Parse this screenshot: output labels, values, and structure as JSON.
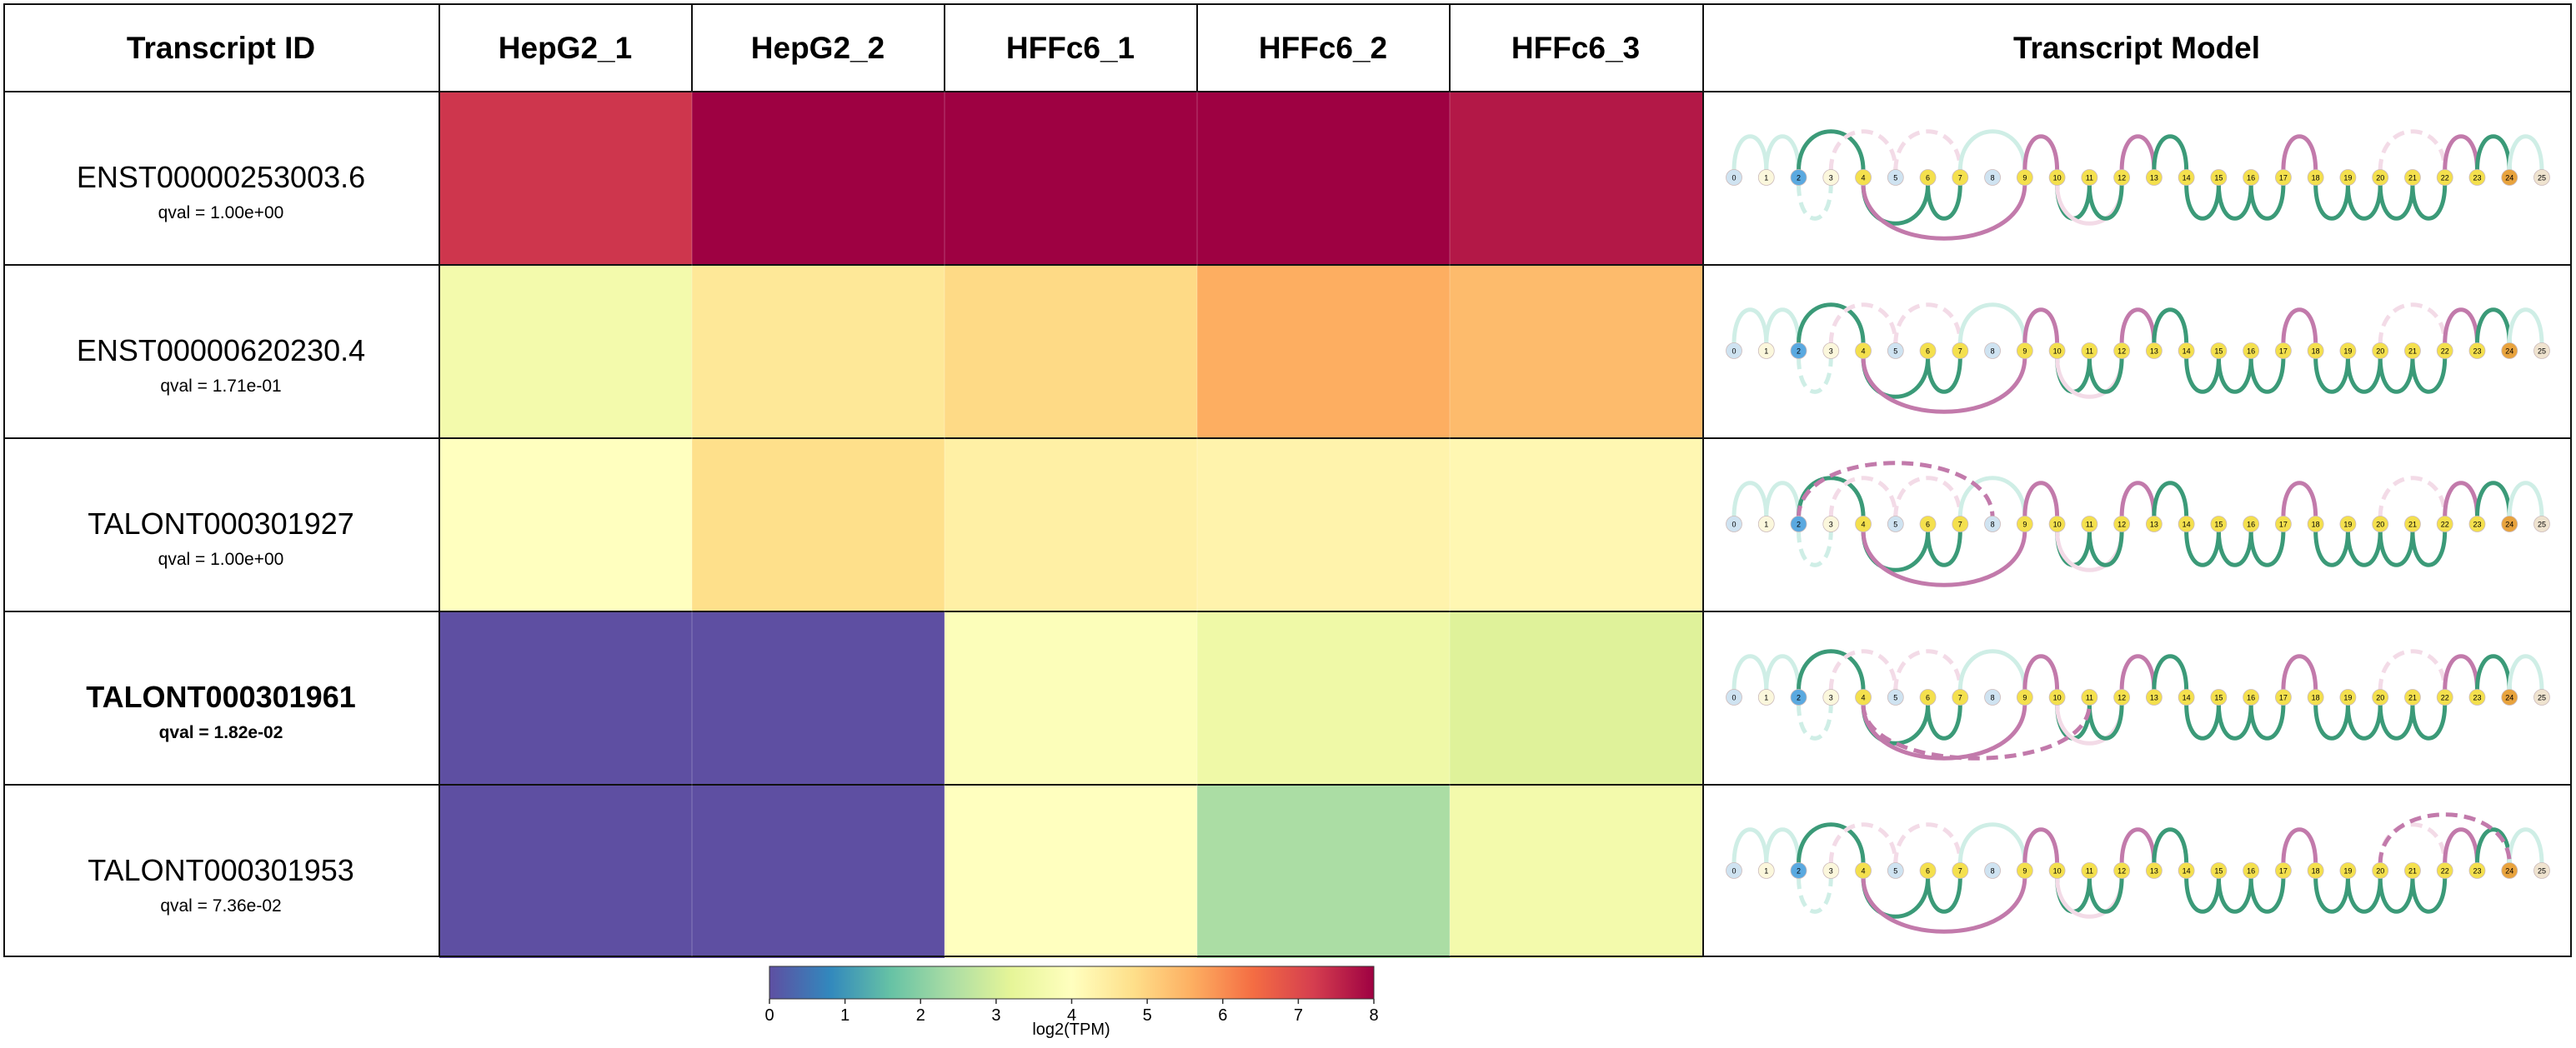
{
  "headers": {
    "transcript_id": "Transcript ID",
    "samples": [
      "HepG2_1",
      "HepG2_2",
      "HFFc6_1",
      "HFFc6_2",
      "HFFc6_3"
    ],
    "model": "Transcript Model"
  },
  "chart_data": {
    "type": "heatmap",
    "rows": [
      {
        "id": "ENST00000253003.6",
        "qval": "qval = 1.00e+00",
        "bold": false
      },
      {
        "id": "ENST00000620230.4",
        "qval": "qval = 1.71e-01",
        "bold": false
      },
      {
        "id": "TALONT000301927",
        "qval": "qval = 1.00e+00",
        "bold": false
      },
      {
        "id": "TALONT000301961",
        "qval": "qval = 1.82e-02",
        "bold": true
      },
      {
        "id": "TALONT000301953",
        "qval": "qval = 7.36e-02",
        "bold": false
      }
    ],
    "columns": [
      "HepG2_1",
      "HepG2_2",
      "HFFc6_1",
      "HFFc6_2",
      "HFFc6_3"
    ],
    "values": [
      [
        7.3,
        8.1,
        8.0,
        8.1,
        7.7
      ],
      [
        3.6,
        4.6,
        4.9,
        5.6,
        5.4
      ],
      [
        4.0,
        4.8,
        4.4,
        4.3,
        4.2
      ],
      [
        0.0,
        0.0,
        3.9,
        3.5,
        3.1
      ],
      [
        0.0,
        0.0,
        4.0,
        2.4,
        3.6
      ]
    ],
    "colorbar": {
      "label": "log2(TPM)",
      "ticks": [
        "0",
        "1",
        "2",
        "3",
        "4",
        "5",
        "6",
        "7",
        "8"
      ],
      "range": [
        0,
        8
      ],
      "colormap": "Spectral_r",
      "colors": [
        "#5e4fa2",
        "#3288bd",
        "#66c2a5",
        "#abdda4",
        "#e6f598",
        "#ffffbf",
        "#fee08b",
        "#fdae61",
        "#f46d43",
        "#d53e4f",
        "#9e0142"
      ]
    },
    "transcript_model": {
      "node_labels": [
        "0",
        "1",
        "2",
        "3",
        "4",
        "5",
        "6",
        "7",
        "8",
        "9",
        "10",
        "11",
        "12",
        "13",
        "14",
        "15",
        "16",
        "17",
        "18",
        "19",
        "20",
        "21",
        "22",
        "23",
        "24",
        "25"
      ],
      "colors": {
        "green": "#3b9a78",
        "pink": "#c27aab",
        "faint_green": "#cfeee6",
        "faint_pink": "#f3dbe7"
      }
    }
  }
}
